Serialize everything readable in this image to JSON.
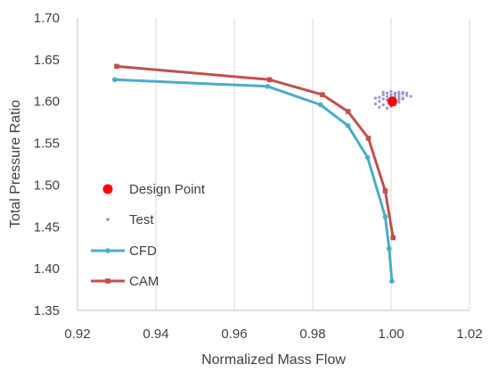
{
  "chart_data": {
    "type": "scatter",
    "xlabel": "Normalized Mass Flow",
    "ylabel": "Total Pressure Ratio",
    "xlim": [
      0.92,
      1.02
    ],
    "ylim": [
      1.35,
      1.7
    ],
    "xticks": [
      "0.92",
      "0.94",
      "0.96",
      "0.98",
      "1.00",
      "1.02"
    ],
    "yticks": [
      "1.35",
      "1.40",
      "1.45",
      "1.50",
      "1.55",
      "1.60",
      "1.65",
      "1.70"
    ],
    "grid": "vertical",
    "legend_position": "left-middle",
    "series": [
      {
        "name": "Design Point",
        "kind": "marker",
        "color": "#ff0000",
        "points": [
          [
            1.0003,
            1.6
          ]
        ]
      },
      {
        "name": "Test",
        "kind": "scatter",
        "color": "#a08cc8",
        "points": [
          [
            0.997,
            1.6
          ],
          [
            0.998,
            1.603
          ],
          [
            0.999,
            1.606
          ],
          [
            1.0,
            1.608
          ],
          [
            1.001,
            1.61
          ],
          [
            1.002,
            1.611
          ],
          [
            1.003,
            1.609
          ],
          [
            1.004,
            1.607
          ],
          [
            1.005,
            1.606
          ],
          [
            0.998,
            1.608
          ],
          [
            0.999,
            1.61
          ],
          [
            1.0,
            1.612
          ],
          [
            1.001,
            1.606
          ],
          [
            1.002,
            1.605
          ],
          [
            1.003,
            1.603
          ],
          [
            0.996,
            1.597
          ],
          [
            0.997,
            1.593
          ],
          [
            0.998,
            1.596
          ],
          [
            0.999,
            1.592
          ],
          [
            1.0,
            1.598
          ],
          [
            1.001,
            1.601
          ],
          [
            1.002,
            1.602
          ],
          [
            1.003,
            1.604
          ],
          [
            0.998,
            1.611
          ],
          [
            1.0,
            1.605
          ],
          [
            1.001,
            1.609
          ],
          [
            1.002,
            1.608
          ],
          [
            0.997,
            1.605
          ],
          [
            0.999,
            1.602
          ],
          [
            1.004,
            1.61
          ],
          [
            0.996,
            1.604
          ],
          [
            1.0,
            1.594
          ],
          [
            1.001,
            1.596
          ],
          [
            1.003,
            1.611
          ],
          [
            1.002,
            1.599
          ]
        ]
      },
      {
        "name": "CFD",
        "kind": "line",
        "color": "#4bacc6",
        "points": [
          [
            0.9295,
            1.626
          ],
          [
            0.9685,
            1.618
          ],
          [
            0.982,
            1.596
          ],
          [
            0.989,
            1.571
          ],
          [
            0.994,
            1.533
          ],
          [
            0.9985,
            1.462
          ],
          [
            0.9995,
            1.424
          ],
          [
            1.0002,
            1.385
          ]
        ]
      },
      {
        "name": "CAM",
        "kind": "line",
        "color": "#c0504d",
        "points": [
          [
            0.93,
            1.642
          ],
          [
            0.969,
            1.626
          ],
          [
            0.9825,
            1.608
          ],
          [
            0.989,
            1.588
          ],
          [
            0.9942,
            1.556
          ],
          [
            0.9985,
            1.493
          ],
          [
            1.0005,
            1.437
          ]
        ]
      }
    ]
  }
}
